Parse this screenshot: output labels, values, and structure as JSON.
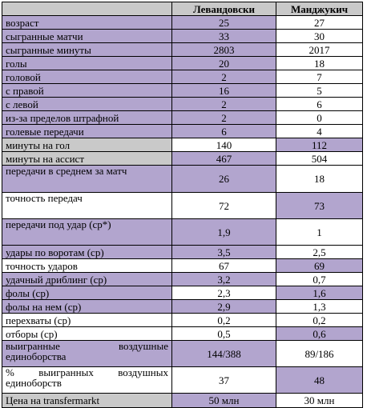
{
  "colors": {
    "header": "#c9c9c9",
    "highlight": "#b2a5ce",
    "plain": "#ffffff"
  },
  "header": {
    "player_a": "Левандовски",
    "player_b": "Манджукич"
  },
  "rows": [
    {
      "label": "возраст",
      "a": "25",
      "b": "27",
      "hl": "a",
      "lblbg": "hl"
    },
    {
      "label": "сыгранные матчи",
      "a": "33",
      "b": "30",
      "hl": "a",
      "lblbg": "hl"
    },
    {
      "label": "сыгранные минуты",
      "a": "2803",
      "b": "2017",
      "hl": "a",
      "lblbg": "hl"
    },
    {
      "label": "голы",
      "a": "20",
      "b": "18",
      "hl": "a",
      "lblbg": "hl"
    },
    {
      "label": "головой",
      "a": "2",
      "b": "7",
      "hl": "a",
      "lblbg": "hl"
    },
    {
      "label": "с правой",
      "a": "16",
      "b": "5",
      "hl": "a",
      "lblbg": "hl"
    },
    {
      "label": "с левой",
      "a": "2",
      "b": "6",
      "hl": "a",
      "lblbg": "hl"
    },
    {
      "label": "из-за пределов штрафной",
      "a": "2",
      "b": "0",
      "hl": "a",
      "lblbg": "hl"
    },
    {
      "label": "голевые передачи",
      "a": "6",
      "b": "4",
      "hl": "a",
      "lblbg": "hl"
    },
    {
      "label": "минуты на гол",
      "a": "140",
      "b": "112",
      "hl": "b",
      "lblbg": "grey"
    },
    {
      "label": "минуты на ассист",
      "a": "467",
      "b": "504",
      "hl": "a",
      "lblbg": "grey"
    },
    {
      "label": "передачи в среднем за матч",
      "a": "26",
      "b": "18",
      "hl": "a",
      "lblbg": "hl",
      "tall": true
    },
    {
      "label": "точность передач",
      "a": "72",
      "b": "73",
      "hl": "b",
      "lblbg": "plain",
      "tall": true
    },
    {
      "label": "передачи под удар (ср*)",
      "a": "1,9",
      "b": "1",
      "hl": "a",
      "lblbg": "hl",
      "tall": true
    },
    {
      "label": "удары по воротам (ср)",
      "a": "3,5",
      "b": "2,5",
      "hl": "a",
      "lblbg": "hl"
    },
    {
      "label": "точность ударов",
      "a": "67",
      "b": "69",
      "hl": "b",
      "lblbg": "plain"
    },
    {
      "label": "удачный дриблинг (ср)",
      "a": "3,2",
      "b": "0,7",
      "hl": "a",
      "lblbg": "hl"
    },
    {
      "label": "фолы (ср)",
      "a": "2,3",
      "b": "1,6",
      "hl": "b",
      "lblbg": "hl"
    },
    {
      "label": "фолы на нем (ср)",
      "a": "2,9",
      "b": "1,3",
      "hl": "a",
      "lblbg": "hl"
    },
    {
      "label": "перехваты (ср)",
      "a": "0,2",
      "b": "0,2",
      "hl": "none",
      "lblbg": "plain"
    },
    {
      "label": "отборы (ср)",
      "a": "0,5",
      "b": "0,6",
      "hl": "b",
      "lblbg": "plain"
    },
    {
      "label": "выигранные воздушные единоборства",
      "line1": [
        "выигранные",
        "воздушные"
      ],
      "line2": "единоборства",
      "a": "144/388",
      "b": "89/186",
      "hl": "a",
      "lblbg": "hl",
      "tall": true
    },
    {
      "label": "% выигранных воздушных единоборств",
      "line1": [
        "%",
        "выигранных",
        "воздушных"
      ],
      "line2": "единоборств",
      "a": "37",
      "b": "48",
      "hl": "b",
      "lblbg": "plain",
      "tall": true
    },
    {
      "label": "Цена на transfermarkt",
      "a": "50 млн",
      "b": "30 млн",
      "hl": "a",
      "lblbg": "grey"
    }
  ]
}
